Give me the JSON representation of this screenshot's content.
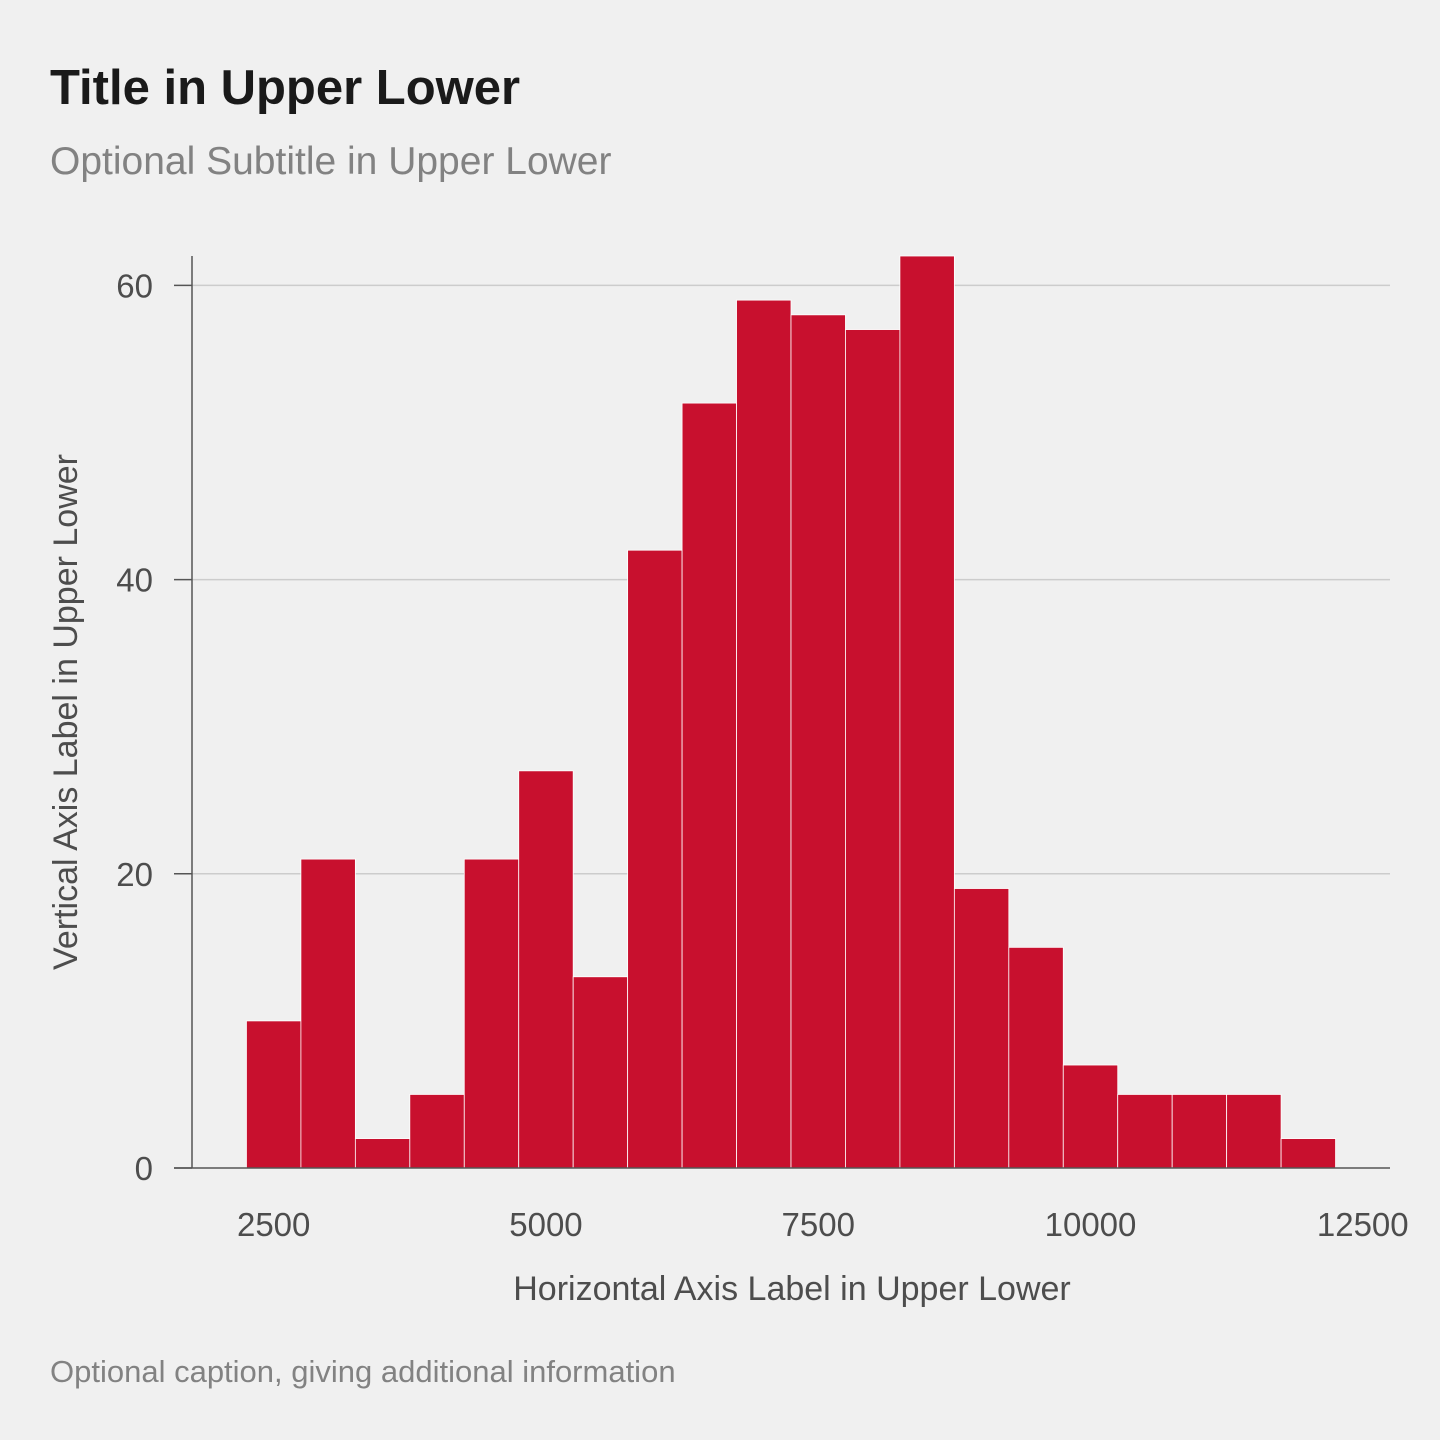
{
  "title": "Title in Upper Lower",
  "subtitle": "Optional Subtitle in Upper Lower",
  "caption": "Optional caption, giving additional information",
  "colors": {
    "background": "#f0f0f0",
    "bar_fill": "#c8102e",
    "bar_border": "#ffffff",
    "grid": "#cccccc",
    "axis": "#555555",
    "text": "#4d4d4d"
  },
  "chart_data": {
    "type": "bar",
    "subtype": "histogram",
    "title": "Title in Upper Lower",
    "subtitle": "Optional Subtitle in Upper Lower",
    "xlabel": "Horizontal Axis Label in Upper Lower",
    "ylabel": "Vertical Axis Label in Upper Lower",
    "bin_width": 500,
    "bin_edges": [
      2250,
      2750,
      3250,
      3750,
      4250,
      4750,
      5250,
      5750,
      6250,
      6750,
      7250,
      7750,
      8250,
      8750,
      9250,
      9750,
      10250,
      10750,
      11250,
      11750,
      12250
    ],
    "values": [
      10,
      21,
      2,
      5,
      21,
      27,
      13,
      42,
      52,
      59,
      58,
      57,
      62,
      19,
      15,
      7,
      5,
      5,
      5,
      2
    ],
    "xlim": [
      1750,
      12750
    ],
    "ylim": [
      0,
      62
    ],
    "x_ticks": [
      2500,
      5000,
      7500,
      10000,
      12500
    ],
    "y_ticks": [
      0,
      20,
      40,
      60
    ],
    "grid": "horizontal major",
    "legend": "none"
  }
}
